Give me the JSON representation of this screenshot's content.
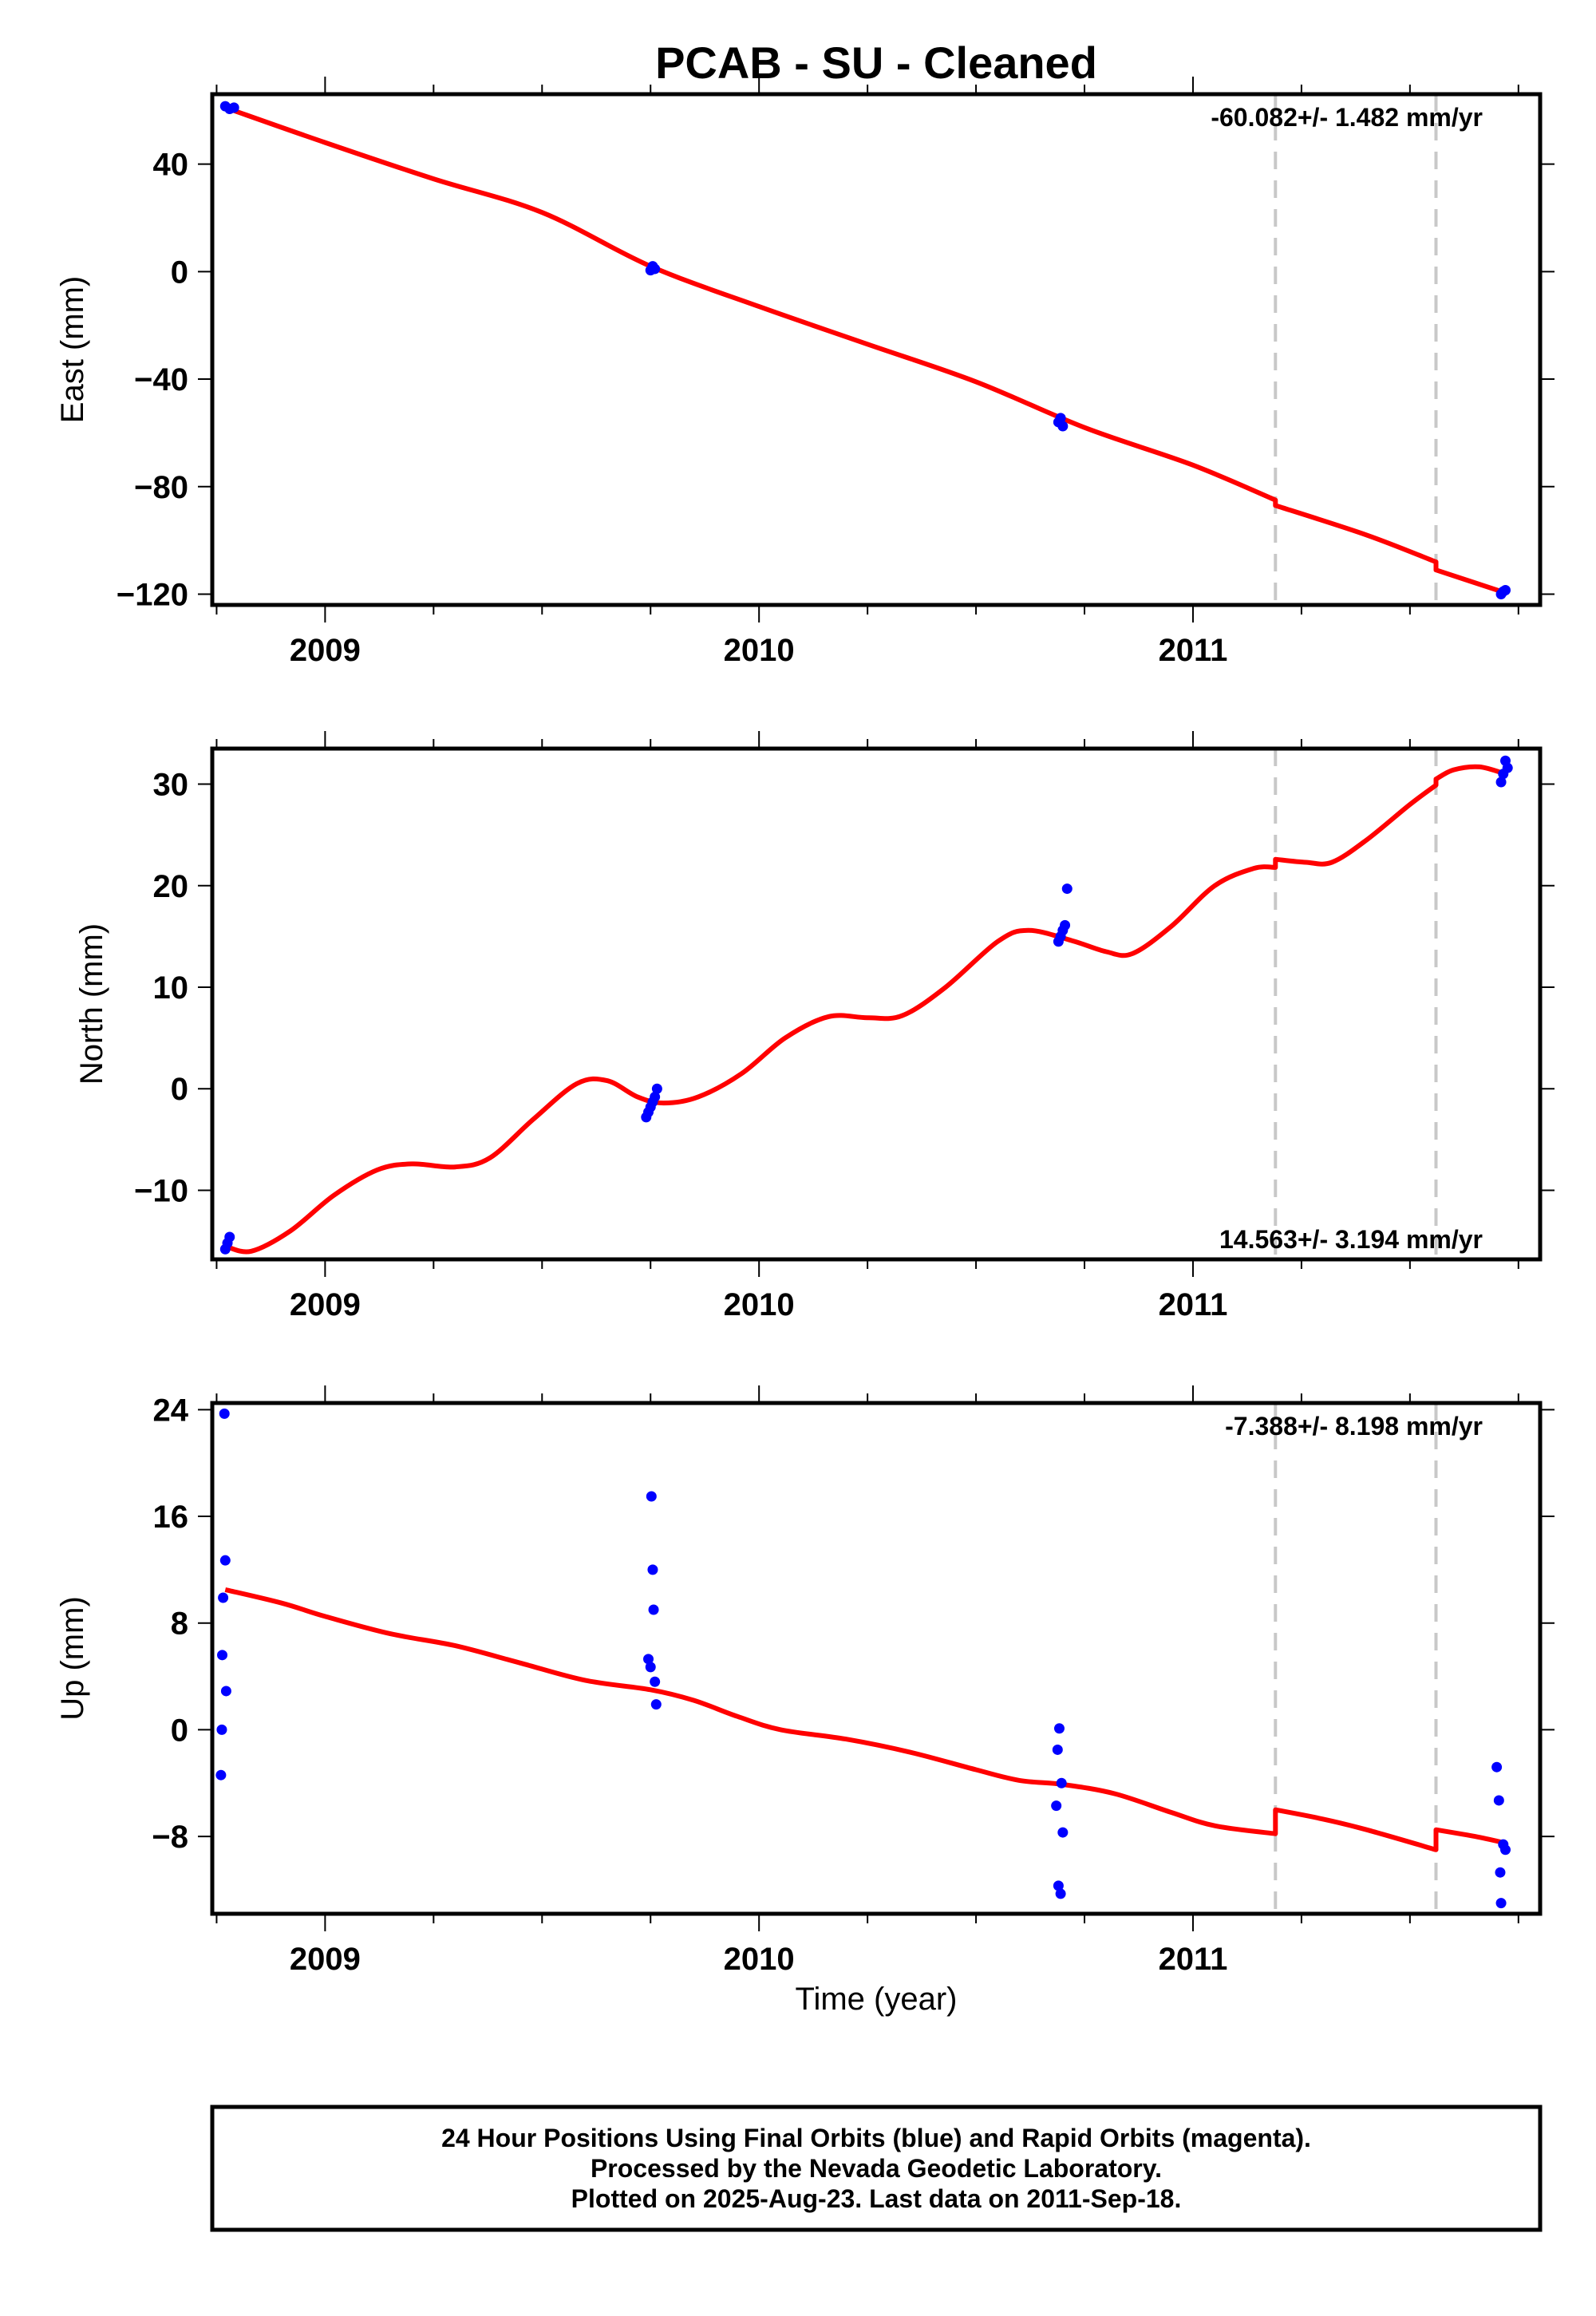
{
  "title": "PCAB  - SU - Cleaned",
  "xlabel": "Time (year)",
  "footer": {
    "line1": "24 Hour Positions Using Final Orbits (blue) and Rapid Orbits (magenta).",
    "line2": "Processed by the Nevada Geodetic Laboratory.",
    "line3": "Plotted on 2025-Aug-23. Last data on 2011-Sep-18."
  },
  "colors": {
    "data": "#0000ff",
    "model": "#ff0000",
    "breaks": "#c8c8c8",
    "frame": "#000000"
  },
  "chart_data": [
    {
      "type": "scatter",
      "title": "",
      "ylabel": "East (mm)",
      "rate": "-60.082+/- 1.482 mm/yr",
      "rate_position": "top-right",
      "xlim": [
        2008.74,
        2011.8
      ],
      "ylim": [
        -124,
        66
      ],
      "xticks": [
        2009,
        2010,
        2011
      ],
      "yticks": [
        40,
        0,
        -40,
        -80,
        -120
      ],
      "ytick_labels": [
        "40",
        "0",
        "−40",
        "−80",
        "−120"
      ],
      "breaks": [
        2011.19,
        2011.56
      ],
      "series": [
        {
          "name": "Final Orbits",
          "points": [
            [
              2008.77,
              61.5
            ],
            [
              2008.78,
              60.5
            ],
            [
              2008.79,
              61.0
            ],
            [
              2009.75,
              0.5
            ],
            [
              2009.755,
              2.0
            ],
            [
              2009.76,
              1.0
            ],
            [
              2010.69,
              -56.0
            ],
            [
              2010.695,
              -54.5
            ],
            [
              2010.7,
              -57.5
            ],
            [
              2011.71,
              -120.0
            ],
            [
              2011.715,
              -119.0
            ],
            [
              2011.72,
              -118.5
            ]
          ]
        }
      ],
      "model": [
        [
          2008.77,
          61.0
        ],
        [
          2009.0,
          48.0
        ],
        [
          2009.25,
          34.5
        ],
        [
          2009.5,
          22.0
        ],
        [
          2009.75,
          2.0
        ],
        [
          2010.0,
          -13.0
        ],
        [
          2010.25,
          -27.0
        ],
        [
          2010.5,
          -41.0
        ],
        [
          2010.75,
          -58.0
        ],
        [
          2011.0,
          -72.0
        ],
        [
          2011.19,
          -85.0
        ],
        [
          2011.19,
          -87.0
        ],
        [
          2011.4,
          -98.0
        ],
        [
          2011.56,
          -108.0
        ],
        [
          2011.56,
          -111.0
        ],
        [
          2011.72,
          -119.5
        ]
      ]
    },
    {
      "type": "scatter",
      "title": "",
      "ylabel": "North (mm)",
      "rate": "14.563+/- 3.194 mm/yr",
      "rate_position": "bottom-right",
      "xlim": [
        2008.74,
        2011.8
      ],
      "ylim": [
        -16.8,
        33.5
      ],
      "xticks": [
        2009,
        2010,
        2011
      ],
      "yticks": [
        30,
        20,
        10,
        0,
        -10
      ],
      "ytick_labels": [
        "30",
        "20",
        "10",
        "0",
        "−10"
      ],
      "breaks": [
        2011.19,
        2011.56
      ],
      "series": [
        {
          "name": "Final Orbits",
          "points": [
            [
              2008.77,
              -15.8
            ],
            [
              2008.775,
              -15.2
            ],
            [
              2008.78,
              -14.6
            ],
            [
              2009.74,
              -2.8
            ],
            [
              2009.745,
              -2.3
            ],
            [
              2009.75,
              -1.8
            ],
            [
              2009.755,
              -1.3
            ],
            [
              2009.76,
              -0.8
            ],
            [
              2009.765,
              0.0
            ],
            [
              2010.69,
              14.5
            ],
            [
              2010.695,
              15.0
            ],
            [
              2010.7,
              15.6
            ],
            [
              2010.705,
              16.1
            ],
            [
              2010.71,
              19.7
            ],
            [
              2011.71,
              30.2
            ],
            [
              2011.715,
              31.0
            ],
            [
              2011.72,
              32.3
            ],
            [
              2011.725,
              31.6
            ]
          ]
        }
      ],
      "model": [
        [
          2008.77,
          -15.5
        ],
        [
          2008.83,
          -16.0
        ],
        [
          2008.92,
          -14.0
        ],
        [
          2009.02,
          -10.5
        ],
        [
          2009.12,
          -8.0
        ],
        [
          2009.2,
          -7.4
        ],
        [
          2009.3,
          -7.7
        ],
        [
          2009.38,
          -6.8
        ],
        [
          2009.48,
          -3.0
        ],
        [
          2009.58,
          0.5
        ],
        [
          2009.65,
          0.8
        ],
        [
          2009.72,
          -0.8
        ],
        [
          2009.78,
          -1.4
        ],
        [
          2009.86,
          -0.8
        ],
        [
          2009.96,
          1.5
        ],
        [
          2010.06,
          5.0
        ],
        [
          2010.16,
          7.1
        ],
        [
          2010.25,
          7.0
        ],
        [
          2010.33,
          7.2
        ],
        [
          2010.43,
          10.0
        ],
        [
          2010.55,
          14.5
        ],
        [
          2010.62,
          15.6
        ],
        [
          2010.72,
          14.6
        ],
        [
          2010.8,
          13.5
        ],
        [
          2010.86,
          13.3
        ],
        [
          2010.95,
          16.0
        ],
        [
          2011.05,
          20.0
        ],
        [
          2011.14,
          21.7
        ],
        [
          2011.19,
          21.8
        ],
        [
          2011.19,
          22.6
        ],
        [
          2011.26,
          22.3
        ],
        [
          2011.32,
          22.3
        ],
        [
          2011.4,
          24.5
        ],
        [
          2011.5,
          28.0
        ],
        [
          2011.56,
          29.9
        ],
        [
          2011.56,
          30.5
        ],
        [
          2011.6,
          31.4
        ],
        [
          2011.66,
          31.7
        ],
        [
          2011.72,
          31.0
        ]
      ]
    },
    {
      "type": "scatter",
      "title": "",
      "ylabel": "Up (mm)",
      "rate": "-7.388+/- 8.198 mm/yr",
      "rate_position": "top-right",
      "xlim": [
        2008.74,
        2011.8
      ],
      "ylim": [
        -13.8,
        24.5
      ],
      "xticks": [
        2009,
        2010,
        2011
      ],
      "yticks": [
        24,
        16,
        8,
        0,
        -8
      ],
      "ytick_labels": [
        "24",
        "16",
        "8",
        "0",
        "−8"
      ],
      "breaks": [
        2011.19,
        2011.56
      ],
      "series": [
        {
          "name": "Final Orbits",
          "points": [
            [
              2008.76,
              -3.4
            ],
            [
              2008.762,
              0.0
            ],
            [
              2008.763,
              5.6
            ],
            [
              2008.765,
              9.9
            ],
            [
              2008.768,
              23.7
            ],
            [
              2008.77,
              12.7
            ],
            [
              2008.772,
              2.9
            ],
            [
              2009.745,
              5.3
            ],
            [
              2009.75,
              4.7
            ],
            [
              2009.752,
              17.5
            ],
            [
              2009.755,
              12.0
            ],
            [
              2009.757,
              9.0
            ],
            [
              2009.76,
              3.6
            ],
            [
              2009.763,
              1.9
            ],
            [
              2010.685,
              -5.7
            ],
            [
              2010.688,
              -1.5
            ],
            [
              2010.69,
              -11.7
            ],
            [
              2010.692,
              0.1
            ],
            [
              2010.695,
              -12.3
            ],
            [
              2010.697,
              -4.0
            ],
            [
              2010.7,
              -7.7
            ],
            [
              2011.7,
              -2.8
            ],
            [
              2011.705,
              -5.3
            ],
            [
              2011.708,
              -10.7
            ],
            [
              2011.71,
              -13.0
            ],
            [
              2011.715,
              -8.6
            ],
            [
              2011.72,
              -9.0
            ]
          ]
        }
      ],
      "model": [
        [
          2008.77,
          10.5
        ],
        [
          2008.9,
          9.5
        ],
        [
          2009.0,
          8.5
        ],
        [
          2009.15,
          7.2
        ],
        [
          2009.3,
          6.3
        ],
        [
          2009.45,
          5.0
        ],
        [
          2009.6,
          3.7
        ],
        [
          2009.75,
          3.0
        ],
        [
          2009.85,
          2.2
        ],
        [
          2009.95,
          1.0
        ],
        [
          2010.05,
          0.0
        ],
        [
          2010.2,
          -0.7
        ],
        [
          2010.35,
          -1.7
        ],
        [
          2010.5,
          -3.0
        ],
        [
          2010.6,
          -3.8
        ],
        [
          2010.7,
          -4.1
        ],
        [
          2010.82,
          -4.8
        ],
        [
          2010.95,
          -6.2
        ],
        [
          2011.05,
          -7.2
        ],
        [
          2011.19,
          -7.8
        ],
        [
          2011.19,
          -6.0
        ],
        [
          2011.3,
          -6.7
        ],
        [
          2011.4,
          -7.5
        ],
        [
          2011.56,
          -9.0
        ],
        [
          2011.56,
          -7.5
        ],
        [
          2011.65,
          -8.0
        ],
        [
          2011.72,
          -8.5
        ]
      ]
    }
  ]
}
